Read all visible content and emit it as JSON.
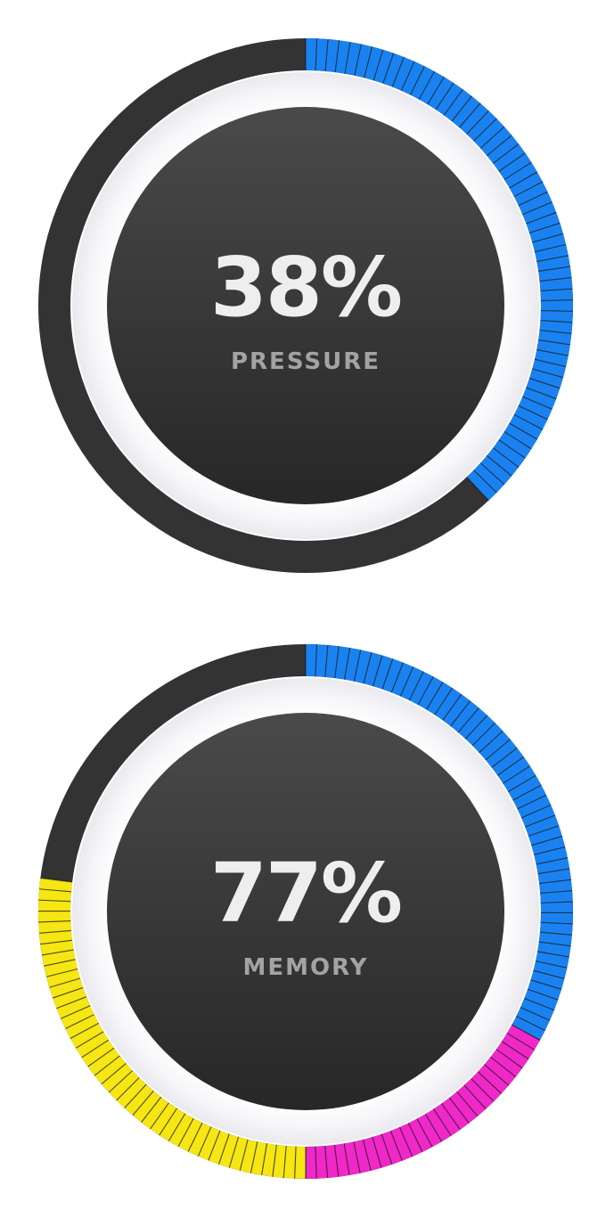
{
  "colors": {
    "track": "#333333",
    "blue": "#1a82f0",
    "magenta": "#f028c8",
    "yellow": "#f5e614",
    "tick": "#1a1a1a",
    "inner_top": "#4a4a4a",
    "inner_bottom": "#272727",
    "halo": "#f7f7fa",
    "halo_edge": "#e9e9ee"
  },
  "gauges": [
    {
      "id": "pressure",
      "value_text": "38%",
      "label": "PRESSURE",
      "percent": 38,
      "segments": [
        {
          "color": "blue",
          "from": 0,
          "to": 38
        }
      ]
    },
    {
      "id": "memory",
      "value_text": "77%",
      "label": "MEMORY",
      "percent": 77,
      "segments": [
        {
          "color": "blue",
          "from": 0,
          "to": 33
        },
        {
          "color": "magenta",
          "from": 33,
          "to": 50
        },
        {
          "color": "yellow",
          "from": 50,
          "to": 77
        }
      ]
    }
  ]
}
